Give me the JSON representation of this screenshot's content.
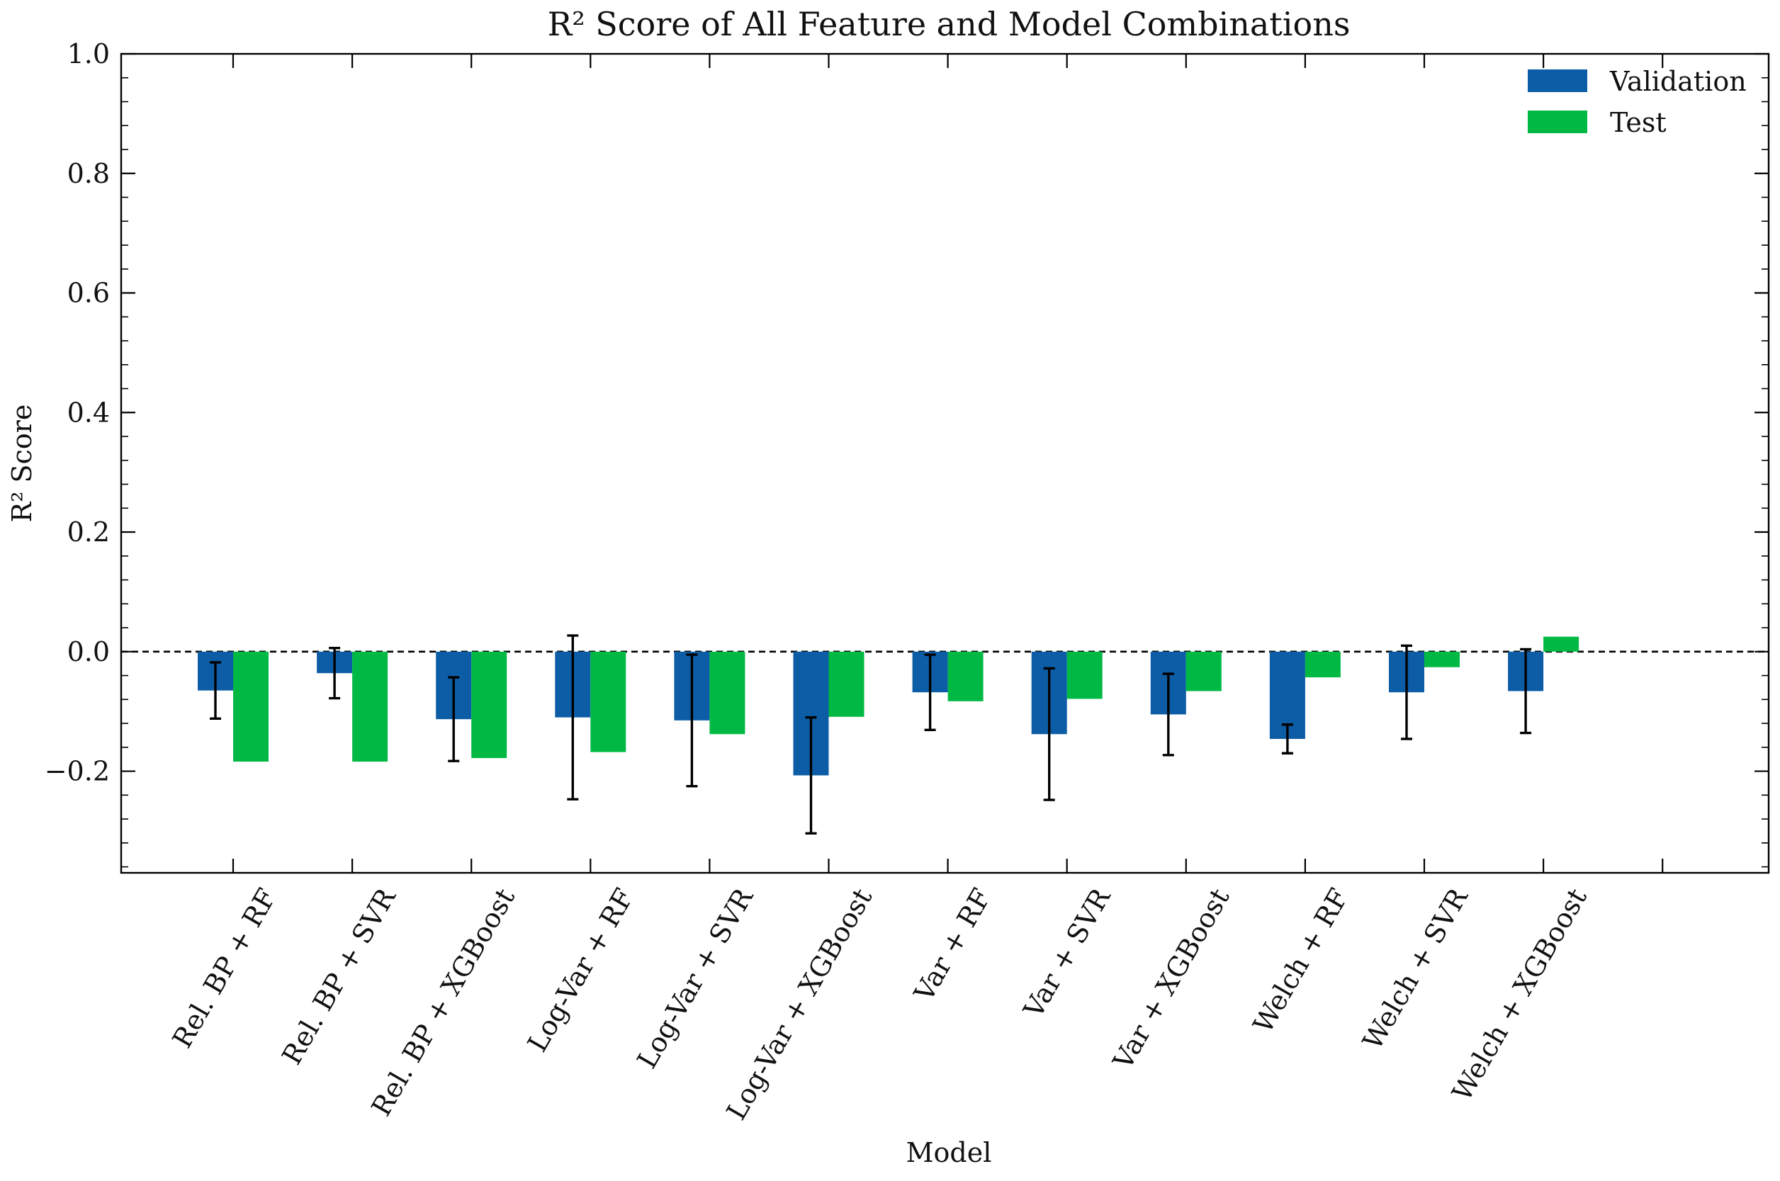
{
  "chart_data": {
    "type": "bar",
    "title": "R² Score of All Feature and Model Combinations",
    "xlabel": "Model",
    "ylabel": "R² Score",
    "ylim": [
      -0.37,
      1.0
    ],
    "yticks": [
      -0.2,
      0.0,
      0.2,
      0.4,
      0.6,
      0.8,
      1.0
    ],
    "ytick_labels": [
      "−0.2",
      "0.0",
      "0.2",
      "0.4",
      "0.6",
      "0.8",
      "1.0"
    ],
    "reference_line": {
      "y": 0.0,
      "style": "dashed"
    },
    "grid": false,
    "legend_position": "top-right",
    "categories": [
      "Rel. BP + RF",
      "Rel. BP + SVR",
      "Rel. BP + XGBoost",
      "Log-Var + RF",
      "Log-Var + SVR",
      "Log-Var + XGBoost",
      "Var + RF",
      "Var + SVR",
      "Var + XGBoost",
      "Welch + RF",
      "Welch + SVR",
      "Welch + XGBoost"
    ],
    "series": [
      {
        "name": "Validation",
        "color": "#0C5DA5",
        "values": [
          -0.065,
          -0.036,
          -0.113,
          -0.11,
          -0.115,
          -0.207,
          -0.068,
          -0.138,
          -0.105,
          -0.146,
          -0.068,
          -0.066
        ],
        "error": [
          0.047,
          0.042,
          0.07,
          0.137,
          0.11,
          0.097,
          0.063,
          0.11,
          0.068,
          0.024,
          0.078,
          0.07
        ]
      },
      {
        "name": "Test",
        "color": "#00B945",
        "values": [
          -0.184,
          -0.184,
          -0.178,
          -0.168,
          -0.138,
          -0.109,
          -0.083,
          -0.079,
          -0.066,
          -0.043,
          -0.026,
          0.025
        ]
      }
    ]
  }
}
